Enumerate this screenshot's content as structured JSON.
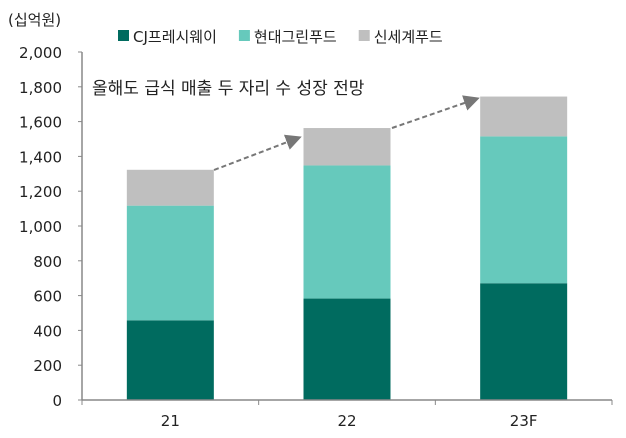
{
  "chart_data": {
    "type": "bar",
    "stacked": true,
    "unit_label": "(십억원)",
    "annotation": "올해도 급식 매출 두 자리 수 성장 전망",
    "categories": [
      "21",
      "22",
      "23F"
    ],
    "ylim": [
      0,
      2000
    ],
    "yticks": [
      0,
      200,
      400,
      600,
      800,
      1000,
      1200,
      1400,
      1600,
      1800,
      2000
    ],
    "ytick_labels": [
      "0",
      "200",
      "400",
      "600",
      "800",
      "1,000",
      "1,200",
      "1,400",
      "1,600",
      "1,800",
      "2,000"
    ],
    "grid": false,
    "legend_position": "top",
    "series": [
      {
        "name": "CJ프레시웨이",
        "color": "#006b5f",
        "values": [
          458,
          583,
          671
        ]
      },
      {
        "name": "현대그린푸드",
        "color": "#66c9bc",
        "values": [
          659,
          765,
          844
        ]
      },
      {
        "name": "신세계푸드",
        "color": "#bfbfbf",
        "values": [
          206,
          215,
          229
        ]
      }
    ]
  }
}
